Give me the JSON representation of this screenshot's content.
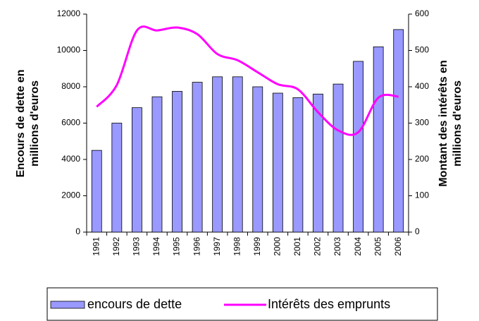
{
  "chart_data": {
    "type": "bar_line",
    "ylabel": [
      "Encours de dette en",
      "millions d'euros"
    ],
    "y2label": [
      "Montant des intérêts en",
      "millions d'euros"
    ],
    "categories": [
      "1991",
      "1992",
      "1993",
      "1994",
      "1995",
      "1996",
      "1997",
      "1998",
      "1999",
      "2000",
      "2001",
      "2002",
      "2003",
      "2004",
      "2005",
      "2006"
    ],
    "series": [
      {
        "name": "encours de dette",
        "type": "bar",
        "color": "#9999ff",
        "values": [
          4500,
          6000,
          6850,
          7450,
          7750,
          8250,
          8550,
          8550,
          8000,
          7650,
          7400,
          7600,
          8150,
          9400,
          10200,
          11150
        ]
      },
      {
        "name": "Intérêts des emprunts",
        "type": "line",
        "axis": "y2",
        "color": "#ff00ff",
        "values": [
          345,
          405,
          555,
          555,
          563,
          545,
          490,
          473,
          440,
          407,
          393,
          330,
          280,
          275,
          370,
          373
        ]
      }
    ],
    "ylim": [
      0,
      12000
    ],
    "yticks": [
      0,
      2000,
      4000,
      6000,
      8000,
      10000,
      12000
    ],
    "y2lim": [
      0,
      600
    ],
    "y2ticks": [
      0,
      100,
      200,
      300,
      400,
      500,
      600
    ],
    "grid": false,
    "legend": "bottom"
  }
}
